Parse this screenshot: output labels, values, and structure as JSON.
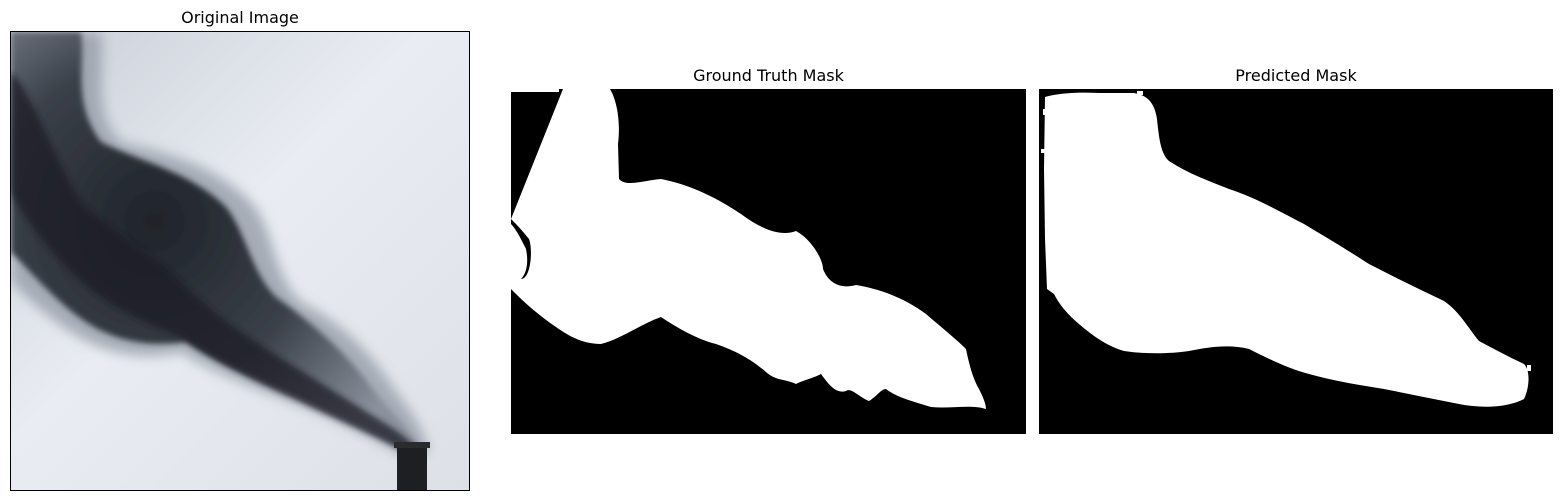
{
  "panels": [
    {
      "title": "Original Image"
    },
    {
      "title": "Ground Truth Mask"
    },
    {
      "title": "Predicted Mask"
    }
  ],
  "colors": {
    "sky": "#e4e8ee",
    "smoke_dark": "#2b2f36",
    "smoke_mid": "#6c7380",
    "mask_background": "#000000",
    "mask_foreground": "#ffffff"
  }
}
